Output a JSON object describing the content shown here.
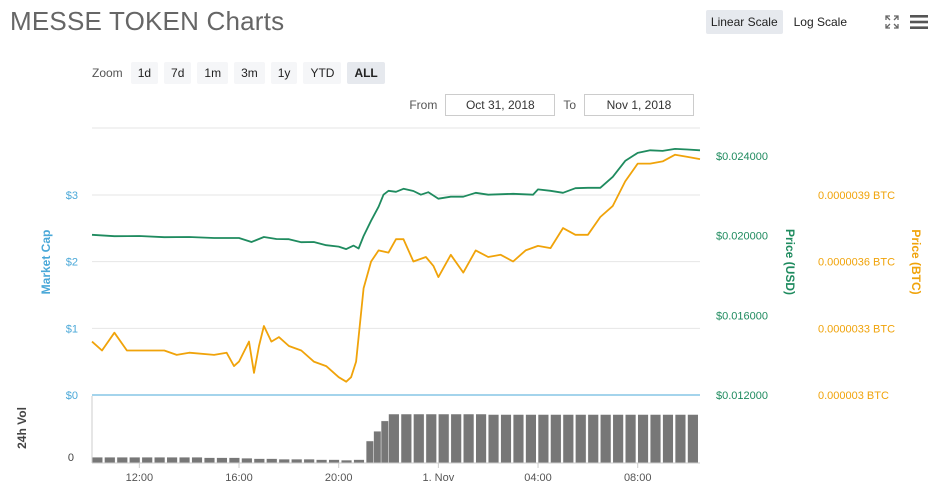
{
  "header": {
    "title": "MESSE TOKEN Charts"
  },
  "toolbar": {
    "linear_label": "Linear Scale",
    "log_label": "Log Scale",
    "zoom_label": "Zoom",
    "zoom_options": [
      "1d",
      "7d",
      "1m",
      "3m",
      "1y",
      "YTD",
      "ALL"
    ],
    "zoom_selected": "ALL",
    "from_label": "From",
    "from_value": "Oct 31, 2018",
    "to_label": "To",
    "to_value": "Nov 1, 2018",
    "icons": [
      "expand-icon",
      "menu-icon"
    ]
  },
  "chart_data": {
    "type": "line",
    "x_tick_labels": [
      "12:00",
      "16:00",
      "20:00",
      "1. Nov",
      "04:00",
      "08:00"
    ],
    "x_tick_hours": [
      12,
      16,
      20,
      24,
      28,
      32
    ],
    "x_range_hours": [
      10.1,
      34.5
    ],
    "axes": {
      "market_cap": {
        "label": "Market Cap",
        "ticks": [
          "$0",
          "$1",
          "$2",
          "$3"
        ],
        "tick_values": [
          0,
          1,
          2,
          3
        ],
        "color": "#4aa8d8"
      },
      "price_usd": {
        "label": "Price (USD)",
        "ticks": [
          "$0.012000",
          "$0.016000",
          "$0.020000",
          "$0.024000"
        ],
        "tick_values": [
          0.012,
          0.016,
          0.02,
          0.024
        ],
        "range": [
          0.012,
          0.0254
        ],
        "color": "#1f8b5f"
      },
      "price_btc": {
        "label": "Price (BTC)",
        "ticks": [
          "0.000003 BTC",
          "0.0000033 BTC",
          "0.0000036 BTC",
          "0.0000039 BTC"
        ],
        "tick_values": [
          3e-06,
          3.3e-06,
          3.6e-06,
          3.9e-06
        ],
        "range": [
          3e-06,
          4.2e-06
        ],
        "color": "#f0a30a"
      },
      "volume": {
        "label": "24h Vol",
        "ticks": [
          "0"
        ],
        "tick_values": [
          0
        ],
        "max": 10
      }
    },
    "series": [
      {
        "name": "Price (USD)",
        "axis": "price_usd",
        "color": "#1f8b5f",
        "points": [
          [
            10.1,
            0.02004
          ],
          [
            11,
            0.01997
          ],
          [
            12,
            0.01998
          ],
          [
            13,
            0.01992
          ],
          [
            14,
            0.01993
          ],
          [
            15,
            0.01988
          ],
          [
            16,
            0.01988
          ],
          [
            16.5,
            0.01968
          ],
          [
            17,
            0.01993
          ],
          [
            17.5,
            0.01983
          ],
          [
            18,
            0.01982
          ],
          [
            18.5,
            0.01967
          ],
          [
            19,
            0.01968
          ],
          [
            19.5,
            0.01952
          ],
          [
            20,
            0.01945
          ],
          [
            20.3,
            0.01932
          ],
          [
            20.6,
            0.0195
          ],
          [
            20.8,
            0.01935
          ],
          [
            21,
            0.01998
          ],
          [
            21.3,
            0.02075
          ],
          [
            21.6,
            0.02145
          ],
          [
            21.8,
            0.02205
          ],
          [
            22,
            0.02225
          ],
          [
            22.3,
            0.0222
          ],
          [
            22.6,
            0.02235
          ],
          [
            23,
            0.02224
          ],
          [
            23.3,
            0.02205
          ],
          [
            23.6,
            0.02218
          ],
          [
            24,
            0.02185
          ],
          [
            24.5,
            0.02195
          ],
          [
            25,
            0.02195
          ],
          [
            25.5,
            0.02215
          ],
          [
            26,
            0.02205
          ],
          [
            27,
            0.0221
          ],
          [
            27.8,
            0.02205
          ],
          [
            28,
            0.02232
          ],
          [
            28.5,
            0.02225
          ],
          [
            29,
            0.02215
          ],
          [
            29.5,
            0.02238
          ],
          [
            30,
            0.0224
          ],
          [
            30.5,
            0.0224
          ],
          [
            31,
            0.02295
          ],
          [
            31.5,
            0.02375
          ],
          [
            32,
            0.02415
          ],
          [
            32.5,
            0.02428
          ],
          [
            33,
            0.02425
          ],
          [
            33.5,
            0.02435
          ],
          [
            34,
            0.02432
          ],
          [
            34.5,
            0.02428
          ]
        ]
      },
      {
        "name": "Price (BTC)",
        "axis": "price_btc",
        "color": "#f0a30a",
        "points": [
          [
            10.1,
            3.24e-06
          ],
          [
            10.5,
            3.2e-06
          ],
          [
            11,
            3.28e-06
          ],
          [
            11.5,
            3.2e-06
          ],
          [
            12,
            3.2e-06
          ],
          [
            13,
            3.2e-06
          ],
          [
            13.5,
            3.18e-06
          ],
          [
            14,
            3.19e-06
          ],
          [
            15,
            3.18e-06
          ],
          [
            15.5,
            3.19e-06
          ],
          [
            15.8,
            3.13e-06
          ],
          [
            16,
            3.15e-06
          ],
          [
            16.4,
            3.24e-06
          ],
          [
            16.6,
            3.1e-06
          ],
          [
            16.8,
            3.22e-06
          ],
          [
            17,
            3.31e-06
          ],
          [
            17.3,
            3.24e-06
          ],
          [
            17.6,
            3.26e-06
          ],
          [
            18,
            3.22e-06
          ],
          [
            18.5,
            3.2e-06
          ],
          [
            19,
            3.15e-06
          ],
          [
            19.5,
            3.13e-06
          ],
          [
            20,
            3.08e-06
          ],
          [
            20.3,
            3.06e-06
          ],
          [
            20.5,
            3.08e-06
          ],
          [
            20.7,
            3.15e-06
          ],
          [
            21,
            3.48e-06
          ],
          [
            21.3,
            3.6e-06
          ],
          [
            21.6,
            3.65e-06
          ],
          [
            22,
            3.64e-06
          ],
          [
            22.3,
            3.7e-06
          ],
          [
            22.6,
            3.7e-06
          ],
          [
            23,
            3.6e-06
          ],
          [
            23.5,
            3.62e-06
          ],
          [
            23.8,
            3.58e-06
          ],
          [
            24,
            3.53e-06
          ],
          [
            24.5,
            3.63e-06
          ],
          [
            25,
            3.55e-06
          ],
          [
            25.5,
            3.65e-06
          ],
          [
            26,
            3.62e-06
          ],
          [
            26.5,
            3.63e-06
          ],
          [
            27,
            3.6e-06
          ],
          [
            27.5,
            3.65e-06
          ],
          [
            28,
            3.67e-06
          ],
          [
            28.5,
            3.66e-06
          ],
          [
            29,
            3.75e-06
          ],
          [
            29.5,
            3.72e-06
          ],
          [
            30,
            3.72e-06
          ],
          [
            30.5,
            3.8e-06
          ],
          [
            31,
            3.85e-06
          ],
          [
            31.5,
            3.96e-06
          ],
          [
            32,
            4.04e-06
          ],
          [
            32.5,
            4.04e-06
          ],
          [
            33,
            4.05e-06
          ],
          [
            33.5,
            4.08e-06
          ],
          [
            34,
            4.07e-06
          ],
          [
            34.5,
            4.06e-06
          ]
        ]
      },
      {
        "name": "Market Cap",
        "axis": "market_cap",
        "color": "#4aa8d8",
        "points": [
          [
            10.1,
            0
          ],
          [
            34.5,
            0
          ]
        ]
      }
    ],
    "volume": {
      "axis": "volume",
      "bar_hours": [
        10.1,
        10.6,
        11.1,
        11.6,
        12.1,
        12.6,
        13.1,
        13.6,
        14.1,
        14.6,
        15.1,
        15.6,
        16.1,
        16.6,
        17.1,
        17.6,
        18.1,
        18.6,
        19.1,
        19.6,
        20.1,
        20.6,
        21.1,
        21.4,
        21.7,
        22.0,
        22.5,
        23,
        23.5,
        24,
        24.5,
        25,
        25.5,
        26,
        26.5,
        27,
        27.5,
        28,
        28.5,
        29,
        29.5,
        30,
        30.5,
        31,
        31.5,
        32,
        32.5,
        33,
        33.5,
        34
      ],
      "values": [
        1.2,
        1.2,
        1.2,
        1.2,
        1.2,
        1.2,
        1.2,
        1.2,
        1.2,
        1.1,
        1.1,
        1.1,
        1.0,
        0.9,
        0.9,
        0.8,
        0.8,
        0.8,
        0.7,
        0.7,
        0.6,
        0.7,
        4.5,
        6.5,
        8.6,
        10,
        10,
        10,
        10,
        10,
        10,
        10,
        10,
        9.9,
        9.9,
        9.9,
        9.9,
        9.9,
        9.9,
        9.9,
        9.9,
        9.9,
        9.9,
        9.9,
        9.9,
        9.9,
        9.9,
        9.9,
        9.9,
        9.9
      ]
    },
    "grid": true,
    "legend": "none"
  }
}
